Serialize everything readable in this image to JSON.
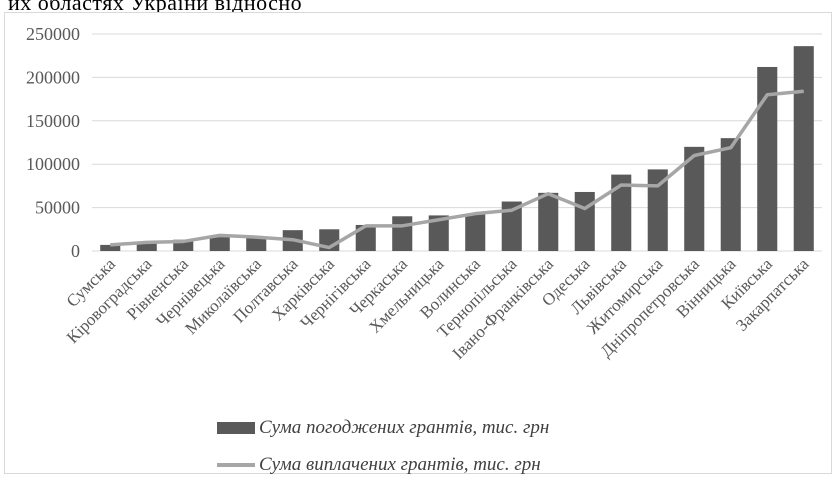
{
  "page": {
    "clipped_title": "их областях України відносно"
  },
  "chart_data": {
    "type": "bar",
    "categories": [
      "Сумська",
      "Кіровоградська",
      "Рівненська",
      "Чернівецька",
      "Миколаївська",
      "Полтавська",
      "Харківська",
      "Чернігівська",
      "Черкаська",
      "Хмельницька",
      "Волинська",
      "Тернопільська",
      "Івано-Франківська",
      "Одеська",
      "Львівська",
      "Житомирська",
      "Дніпропетровська",
      "Вінницька",
      "Київська",
      "Закарпатська"
    ],
    "y_ticks": [
      "0",
      "50000",
      "100000",
      "150000",
      "200000",
      "250000"
    ],
    "ylim": [
      0,
      250000
    ],
    "grid": true,
    "legend_position": "bottom",
    "series": [
      {
        "name": "Сума погоджених грантів, тис. грн",
        "kind": "bar",
        "color": "#595959",
        "values": [
          7000,
          10000,
          13000,
          16000,
          16000,
          24000,
          25000,
          30000,
          40000,
          41000,
          42000,
          57000,
          67000,
          68000,
          88000,
          94000,
          120000,
          130000,
          212000,
          236000
        ]
      },
      {
        "name": "Сума виплачених грантів, тис. грн",
        "kind": "line",
        "color": "#a6a6a6",
        "values": [
          7000,
          10000,
          11000,
          18000,
          16000,
          13000,
          4000,
          29000,
          29000,
          36000,
          43000,
          47000,
          66000,
          49000,
          76000,
          75000,
          110000,
          119000,
          180000,
          184000
        ]
      }
    ]
  }
}
